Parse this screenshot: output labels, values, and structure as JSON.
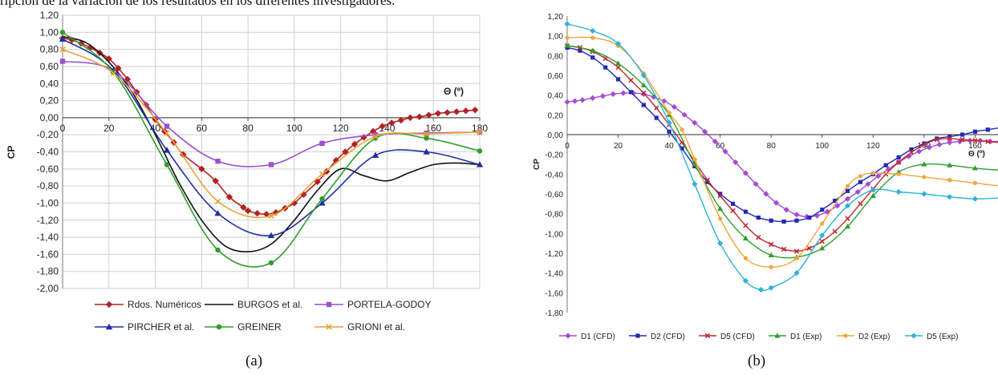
{
  "caption_top": "ripción de la variación de los resultados en los diferentes investigadores.",
  "panel_labels": [
    "(a)",
    "(b)"
  ],
  "chart_data": [
    {
      "type": "line",
      "title": "",
      "xlabel": "Θ (º)",
      "ylabel": "CP",
      "xlim": [
        0,
        180
      ],
      "ylim": [
        -2.0,
        1.2
      ],
      "xticks": [
        0,
        20,
        40,
        60,
        80,
        100,
        120,
        140,
        160,
        180
      ],
      "yticks": [
        1.2,
        1.0,
        0.8,
        0.6,
        0.4,
        0.2,
        0.0,
        -0.2,
        -0.4,
        -0.6,
        -0.8,
        -1.0,
        -1.2,
        -1.4,
        -1.6,
        -1.8,
        -2.0
      ],
      "ytick_labels": [
        "1,20",
        "1,00",
        "0,80",
        "0,60",
        "0,40",
        "0,20",
        "0,00",
        "-0,20",
        "-0,40",
        "-0,60",
        "-0,80",
        "-1,00",
        "-1,20",
        "-1,40",
        "-1,60",
        "-1,80",
        "-2,00"
      ],
      "xtick_labels": [
        "0",
        "20",
        "40",
        "60",
        "80",
        "100",
        "120",
        "140",
        "160",
        "180"
      ],
      "grid": true,
      "legend_position": "bottom",
      "series": [
        {
          "name": "Rdos. Numéricos",
          "color": "#b22222",
          "marker": "diamond",
          "x": [
            0,
            4,
            8,
            12,
            16,
            20,
            24,
            28,
            32,
            36,
            40,
            44,
            48,
            52,
            60,
            66,
            72,
            78,
            80,
            84,
            88,
            92,
            96,
            100,
            104,
            110,
            114,
            118,
            122,
            126,
            130,
            134,
            138,
            142,
            146,
            150,
            154,
            158,
            162,
            166,
            170,
            174,
            178
          ],
          "y": [
            0.93,
            0.91,
            0.87,
            0.82,
            0.76,
            0.69,
            0.58,
            0.45,
            0.3,
            0.15,
            -0.02,
            -0.16,
            -0.29,
            -0.43,
            -0.6,
            -0.74,
            -0.93,
            -1.05,
            -1.09,
            -1.12,
            -1.13,
            -1.11,
            -1.06,
            -1.0,
            -0.9,
            -0.75,
            -0.63,
            -0.5,
            -0.4,
            -0.31,
            -0.23,
            -0.16,
            -0.1,
            -0.06,
            -0.03,
            0.0,
            0.01,
            0.03,
            0.05,
            0.06,
            0.07,
            0.08,
            0.09
          ]
        },
        {
          "name": "BURGOS et al.",
          "color": "#111111",
          "marker": "none",
          "x": [
            0,
            10,
            20,
            30,
            40,
            50,
            60,
            70,
            80,
            90,
            100,
            110,
            120,
            130,
            140,
            150,
            160,
            170,
            180
          ],
          "y": [
            0.95,
            0.88,
            0.65,
            0.3,
            -0.2,
            -0.75,
            -1.2,
            -1.5,
            -1.57,
            -1.48,
            -1.2,
            -0.85,
            -0.6,
            -0.68,
            -0.74,
            -0.64,
            -0.55,
            -0.53,
            -0.55
          ]
        },
        {
          "name": "PORTELA-GODOY",
          "color": "#9b4fd1",
          "marker": "square",
          "x": [
            0,
            22,
            45,
            67,
            90,
            112,
            135,
            157,
            180
          ],
          "y": [
            0.66,
            0.55,
            -0.1,
            -0.51,
            -0.55,
            -0.3,
            -0.2,
            -0.18,
            -0.17
          ]
        },
        {
          "name": "PIRCHER et al.",
          "color": "#2030a0",
          "marker": "triangle",
          "x": [
            0,
            22,
            45,
            67,
            90,
            112,
            135,
            157,
            180
          ],
          "y": [
            0.92,
            0.55,
            -0.38,
            -1.12,
            -1.38,
            -1.0,
            -0.44,
            -0.4,
            -0.55
          ]
        },
        {
          "name": "GREINER",
          "color": "#2e9e2e",
          "marker": "circle",
          "x": [
            0,
            22,
            45,
            67,
            90,
            112,
            135,
            157,
            180
          ],
          "y": [
            1.0,
            0.53,
            -0.55,
            -1.55,
            -1.7,
            -0.95,
            -0.24,
            -0.24,
            -0.39
          ]
        },
        {
          "name": "GRIONI et al.",
          "color": "#e8a33a",
          "marker": "x",
          "x": [
            0,
            22,
            45,
            67,
            90,
            112,
            135,
            157,
            180
          ],
          "y": [
            0.8,
            0.52,
            -0.18,
            -0.98,
            -1.15,
            -0.66,
            -0.22,
            -0.19,
            -0.17
          ]
        }
      ]
    },
    {
      "type": "line",
      "title": "",
      "xlabel": "Θ (º)",
      "ylabel": "CP",
      "xlim": [
        0,
        180
      ],
      "ylim": [
        -1.8,
        1.2
      ],
      "xticks": [
        0,
        20,
        40,
        60,
        80,
        100,
        120,
        140,
        160
      ],
      "yticks": [
        1.2,
        1.0,
        0.8,
        0.6,
        0.4,
        0.2,
        0.0,
        -0.2,
        -0.4,
        -0.6,
        -0.8,
        -1.0,
        -1.2,
        -1.4,
        -1.6,
        -1.8
      ],
      "ytick_labels": [
        "1,20",
        "1,00",
        "0,80",
        "0,60",
        "0,40",
        "0,20",
        "0,00",
        "-0,20",
        "-0,40",
        "-0,60",
        "-0,80",
        "-1,00",
        "-1,20",
        "-1,40",
        "-1,60",
        "-1,80"
      ],
      "xtick_labels": [
        "0",
        "20",
        "40",
        "60",
        "80",
        "100",
        "120",
        "140",
        "160"
      ],
      "grid": false,
      "legend_position": "bottom",
      "series": [
        {
          "name": "D1 (CFD)",
          "color": "#a64ad6",
          "marker": "diamond",
          "x": [
            0,
            3,
            6,
            10,
            14,
            18,
            22,
            26,
            30,
            34,
            38,
            42,
            46,
            50,
            54,
            58,
            62,
            66,
            70,
            74,
            78,
            82,
            86,
            90,
            94,
            98,
            102,
            106,
            110,
            114,
            118,
            122,
            126,
            130,
            134,
            138,
            142,
            146,
            150,
            154,
            158,
            162,
            166,
            170,
            174,
            180
          ],
          "y": [
            0.33,
            0.34,
            0.35,
            0.37,
            0.39,
            0.41,
            0.42,
            0.42,
            0.41,
            0.38,
            0.34,
            0.28,
            0.2,
            0.12,
            0.03,
            -0.07,
            -0.17,
            -0.28,
            -0.39,
            -0.5,
            -0.6,
            -0.69,
            -0.76,
            -0.81,
            -0.83,
            -0.82,
            -0.78,
            -0.72,
            -0.65,
            -0.58,
            -0.5,
            -0.42,
            -0.35,
            -0.28,
            -0.22,
            -0.17,
            -0.13,
            -0.1,
            -0.08,
            -0.07,
            -0.06,
            -0.06,
            -0.07,
            -0.07,
            -0.08,
            -0.09
          ]
        },
        {
          "name": "D2 (CFD)",
          "color": "#1f2ab8",
          "marker": "square",
          "x": [
            0,
            5,
            10,
            15,
            20,
            25,
            30,
            35,
            40,
            45,
            50,
            55,
            60,
            65,
            70,
            75,
            80,
            85,
            90,
            95,
            100,
            105,
            110,
            115,
            120,
            125,
            130,
            135,
            140,
            145,
            150,
            155,
            160,
            165,
            170,
            175,
            180
          ],
          "y": [
            0.88,
            0.85,
            0.78,
            0.68,
            0.56,
            0.43,
            0.3,
            0.17,
            0.03,
            -0.14,
            -0.32,
            -0.48,
            -0.6,
            -0.7,
            -0.78,
            -0.84,
            -0.87,
            -0.88,
            -0.87,
            -0.84,
            -0.76,
            -0.67,
            -0.57,
            -0.48,
            -0.4,
            -0.31,
            -0.23,
            -0.15,
            -0.09,
            -0.04,
            -0.02,
            0.0,
            0.03,
            0.05,
            0.07,
            0.08,
            0.09
          ]
        },
        {
          "name": "D5 (CFD)",
          "color": "#c0282e",
          "marker": "x",
          "x": [
            0,
            5,
            10,
            15,
            20,
            25,
            30,
            35,
            40,
            45,
            50,
            55,
            60,
            65,
            70,
            75,
            80,
            85,
            90,
            95,
            100,
            105,
            110,
            115,
            120,
            125,
            130,
            135,
            140,
            145,
            150,
            155,
            160,
            165,
            170,
            175,
            180
          ],
          "y": [
            0.9,
            0.88,
            0.84,
            0.77,
            0.68,
            0.55,
            0.42,
            0.27,
            0.1,
            -0.08,
            -0.27,
            -0.46,
            -0.62,
            -0.77,
            -0.92,
            -1.04,
            -1.11,
            -1.16,
            -1.18,
            -1.15,
            -1.08,
            -0.98,
            -0.85,
            -0.7,
            -0.55,
            -0.4,
            -0.28,
            -0.18,
            -0.1,
            -0.05,
            -0.04,
            -0.05,
            -0.06,
            -0.07,
            -0.08,
            -0.09,
            -0.1
          ]
        },
        {
          "name": "D1 (Exp)",
          "color": "#2e9e2e",
          "marker": "triangle",
          "x": [
            0,
            10,
            20,
            30,
            40,
            50,
            60,
            70,
            80,
            90,
            100,
            110,
            120,
            130,
            140,
            150,
            160,
            170,
            180
          ],
          "y": [
            0.9,
            0.85,
            0.72,
            0.5,
            0.2,
            -0.3,
            -0.75,
            -1.05,
            -1.22,
            -1.24,
            -1.15,
            -0.93,
            -0.62,
            -0.38,
            -0.3,
            -0.31,
            -0.34,
            -0.36,
            -0.38
          ]
        },
        {
          "name": "D2 (Exp)",
          "color": "#f0a63a",
          "marker": "circle",
          "x": [
            0,
            10,
            20,
            30,
            40,
            45,
            50,
            60,
            70,
            80,
            90,
            100,
            110,
            115,
            120,
            130,
            140,
            150,
            160,
            170,
            180
          ],
          "y": [
            0.98,
            0.98,
            0.9,
            0.62,
            0.22,
            0.05,
            -0.25,
            -0.85,
            -1.25,
            -1.34,
            -1.25,
            -0.9,
            -0.52,
            -0.42,
            -0.39,
            -0.4,
            -0.43,
            -0.46,
            -0.49,
            -0.52,
            -0.54
          ]
        },
        {
          "name": "D5 (Exp)",
          "color": "#2fb3d6",
          "marker": "diamond",
          "x": [
            0,
            10,
            20,
            30,
            40,
            50,
            60,
            70,
            76,
            80,
            90,
            100,
            110,
            120,
            130,
            140,
            150,
            160,
            170,
            180
          ],
          "y": [
            1.12,
            1.05,
            0.92,
            0.6,
            0.12,
            -0.5,
            -1.1,
            -1.48,
            -1.57,
            -1.55,
            -1.4,
            -1.02,
            -0.72,
            -0.56,
            -0.58,
            -0.6,
            -0.63,
            -0.65,
            -0.64,
            -0.62
          ]
        }
      ]
    }
  ]
}
